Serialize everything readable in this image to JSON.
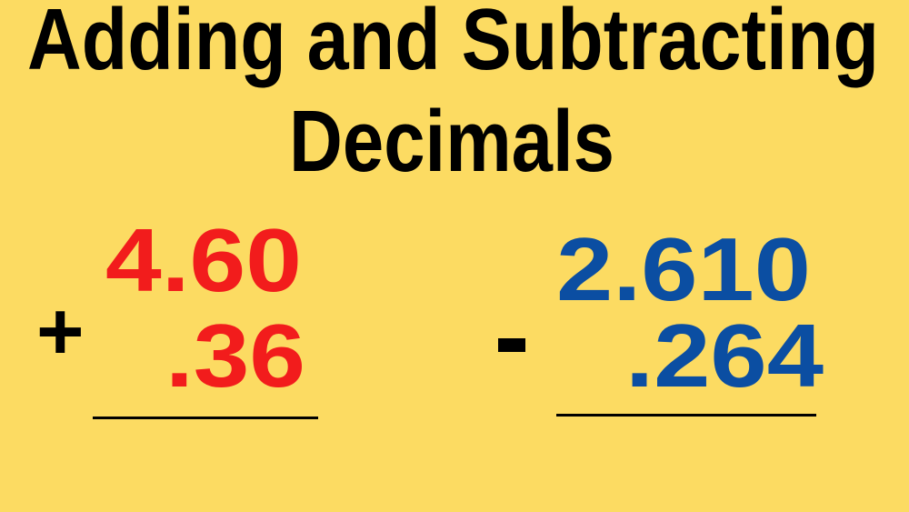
{
  "title": {
    "line1": "Adding and Subtracting",
    "line2": "Decimals"
  },
  "addition": {
    "operator": "+",
    "top": "4.60",
    "bottom": ".36"
  },
  "subtraction": {
    "operator": "-",
    "top": "2.610",
    "bottom": ".264"
  },
  "colors": {
    "background": "#fcdb62",
    "title": "#000000",
    "addition_numbers": "#f21c1c",
    "subtraction_numbers": "#0b4ea2"
  }
}
